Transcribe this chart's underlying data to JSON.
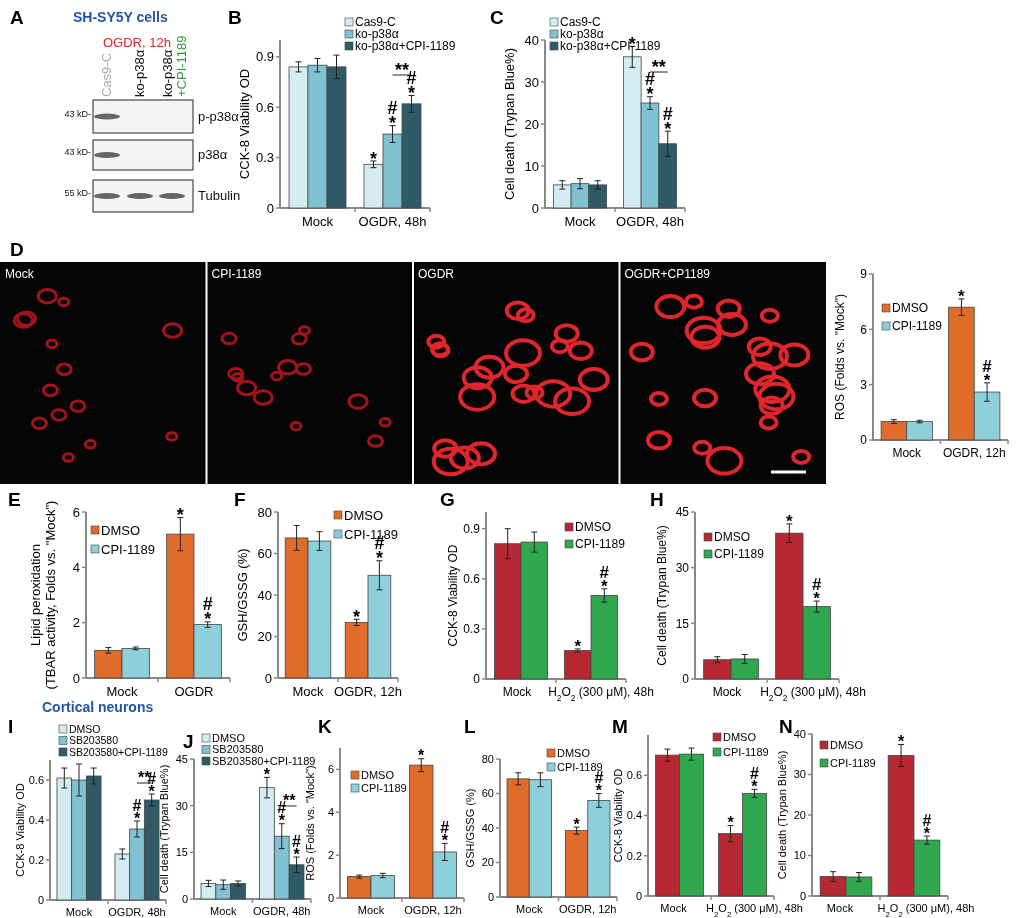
{
  "chart_data": [
    {
      "type": "other",
      "title": "A",
      "subtitle": "SH-SY5Y cells",
      "annotations": [
        "OGDR, 12h",
        "Cas9-C",
        "ko-p38α",
        "ko-p38α",
        "+CPI-1189",
        "43 kD-",
        "43 kD-",
        "55 kD-",
        "p-p38α",
        "p38α",
        "Tubulin"
      ]
    },
    {
      "type": "bar",
      "title": "B",
      "ylabel": "CCK-8 Viability OD",
      "categories": [
        "Mock",
        "OGDR, 48h"
      ],
      "ylim": [
        0,
        1
      ],
      "yticks": [
        0,
        0.3,
        0.6,
        0.9
      ],
      "legend": "top right",
      "series": [
        {
          "name": "Cas9-C",
          "color": "#d3ebf1",
          "values": [
            0.84,
            0.26
          ],
          "errors": [
            0.03,
            0.02
          ]
        },
        {
          "name": "ko-p38α",
          "color": "#80c2d2",
          "values": [
            0.85,
            0.44
          ],
          "errors": [
            0.04,
            0.05
          ]
        },
        {
          "name": "ko-p38α+CPI-1189",
          "color": "#2f5b67",
          "values": [
            0.84,
            0.62
          ],
          "errors": [
            0.07,
            0.05
          ]
        }
      ],
      "annotations": [
        "*",
        "*",
        "#",
        "*",
        "#",
        "**"
      ]
    },
    {
      "type": "bar",
      "title": "C",
      "ylabel": "Cell death (Trypan Blue%)",
      "categories": [
        "Mock",
        "OGDR, 48h"
      ],
      "ylim": [
        0,
        40
      ],
      "yticks": [
        0,
        10,
        20,
        30,
        40
      ],
      "legend": "top left",
      "series": [
        {
          "name": "Cas9-C",
          "color": "#d3ebf1",
          "values": [
            5.5,
            36
          ],
          "errors": [
            1,
            2.5
          ]
        },
        {
          "name": "ko-p38α",
          "color": "#80c2d2",
          "values": [
            5.8,
            25
          ],
          "errors": [
            1.2,
            1.5
          ]
        },
        {
          "name": "ko-p38α+CPI-1189",
          "color": "#2f5b67",
          "values": [
            5.5,
            15.3
          ],
          "errors": [
            1,
            3
          ]
        }
      ],
      "annotations": [
        "*",
        "*",
        "#",
        "*",
        "#",
        "**"
      ]
    },
    {
      "type": "other",
      "title": "D",
      "annotations": [
        "Mock",
        "CPI-1189",
        "OGDR",
        "OGDR+CP1189"
      ]
    },
    {
      "type": "bar",
      "ylabel": "ROS (Folds vs. \"Mock\")",
      "categories": [
        "Mock",
        "OGDR, 12h"
      ],
      "ylim": [
        0,
        9
      ],
      "yticks": [
        0,
        3,
        6,
        9
      ],
      "legend": "top left",
      "series": [
        {
          "name": "DMSO",
          "color": "#e06c2c",
          "values": [
            1.0,
            7.2
          ],
          "errors": [
            0.1,
            0.45
          ]
        },
        {
          "name": "CPI-1189",
          "color": "#8ecfdc",
          "values": [
            1.0,
            2.6
          ],
          "errors": [
            0.07,
            0.5
          ]
        }
      ],
      "annotations": [
        "*",
        "*",
        "#"
      ]
    },
    {
      "type": "bar",
      "title": "E",
      "ylabel": "Lipid peroxidation\n(TBAR activity, Folds vs. \"Mock\")",
      "categories": [
        "Mock",
        "OGDR"
      ],
      "ylim": [
        0,
        6
      ],
      "yticks": [
        0,
        2,
        4,
        6
      ],
      "legend": "top left",
      "series": [
        {
          "name": "DMSO",
          "color": "#e06c2c",
          "values": [
            1.0,
            5.2
          ],
          "errors": [
            0.1,
            0.6
          ]
        },
        {
          "name": "CPI-1189",
          "color": "#8ecfdc",
          "values": [
            1.07,
            1.93
          ],
          "errors": [
            0.05,
            0.1
          ]
        }
      ],
      "annotations": [
        "*",
        "*",
        "#"
      ]
    },
    {
      "type": "bar",
      "title": "F",
      "ylabel": "GSH/GSSG (%)",
      "categories": [
        "Mock",
        "OGDR, 12h"
      ],
      "ylim": [
        0,
        80
      ],
      "yticks": [
        0,
        20,
        40,
        60,
        80
      ],
      "legend": "top right",
      "series": [
        {
          "name": "DMSO",
          "color": "#e06c2c",
          "values": [
            67.5,
            26.8
          ],
          "errors": [
            6,
            1.5
          ]
        },
        {
          "name": "CPI-1189",
          "color": "#8ecfdc",
          "values": [
            66,
            49.5
          ],
          "errors": [
            4.5,
            7
          ]
        }
      ],
      "annotations": [
        "*",
        "*",
        "#"
      ]
    },
    {
      "type": "bar",
      "title": "G",
      "ylabel": "CCK-8 Viability OD",
      "categories": [
        "Mock",
        "H$_{2}$O$_{2}$ (300 μM), 48h"
      ],
      "ylim": [
        0,
        1
      ],
      "yticks": [
        0,
        0.3,
        0.6,
        0.9
      ],
      "legend": "top right",
      "series": [
        {
          "name": "DMSO",
          "color": "#b72833",
          "values": [
            0.81,
            0.17
          ],
          "errors": [
            0.09,
            0.01
          ]
        },
        {
          "name": "CPI-1189",
          "color": "#2fa84f",
          "values": [
            0.82,
            0.5
          ],
          "errors": [
            0.06,
            0.04
          ]
        }
      ],
      "annotations": [
        "*",
        "*",
        "#"
      ]
    },
    {
      "type": "bar",
      "title": "H",
      "ylabel": "Cell death (Trypan Blue%)",
      "categories": [
        "Mock",
        "H$_{2}$O$_{2}$ (300 μM), 48h"
      ],
      "ylim": [
        0,
        45
      ],
      "yticks": [
        0,
        15,
        30,
        45
      ],
      "legend": "top left",
      "series": [
        {
          "name": "DMSO",
          "color": "#b72833",
          "values": [
            5.2,
            39.3
          ],
          "errors": [
            0.8,
            2.5
          ]
        },
        {
          "name": "CPI-1189",
          "color": "#2fa84f",
          "values": [
            5.4,
            19.5
          ],
          "errors": [
            1.2,
            1.5
          ]
        }
      ],
      "annotations": [
        "*",
        "*",
        "#"
      ]
    },
    {
      "type": "bar",
      "title": "I",
      "subtitle": "Cortical neurons",
      "ylabel": "CCK-8 Viability OD",
      "categories": [
        "Mock",
        "OGDR, 48h"
      ],
      "ylim": [
        0,
        0.7
      ],
      "yticks": [
        0,
        0.2,
        0.4,
        0.6
      ],
      "legend": "top right",
      "series": [
        {
          "name": "DMSO",
          "color": "#d3ebf1",
          "values": [
            0.61,
            0.23
          ],
          "errors": [
            0.05,
            0.025
          ]
        },
        {
          "name": "SB203580",
          "color": "#80c2d2",
          "values": [
            0.6,
            0.355
          ],
          "errors": [
            0.08,
            0.04
          ]
        },
        {
          "name": "SB203580+CPI-1189",
          "color": "#2f5b67",
          "values": [
            0.62,
            0.5
          ],
          "errors": [
            0.04,
            0.03
          ]
        }
      ],
      "annotations": [
        "*",
        "#",
        "*",
        "#",
        "**"
      ]
    },
    {
      "type": "bar",
      "title": "J",
      "ylabel": "Cell death (Trypan Blue%)",
      "categories": [
        "Mock",
        "OGDR, 48h"
      ],
      "ylim": [
        0,
        45
      ],
      "yticks": [
        0,
        15,
        30,
        45
      ],
      "legend": "top right",
      "series": [
        {
          "name": "DMSO",
          "color": "#d3ebf1",
          "values": [
            5,
            35.8
          ],
          "errors": [
            1,
            3.3
          ]
        },
        {
          "name": "SB203580",
          "color": "#80c2d2",
          "values": [
            4.6,
            20.2
          ],
          "errors": [
            1.5,
            4
          ]
        },
        {
          "name": "SB203580+CPI-1189",
          "color": "#2f5b67",
          "values": [
            5,
            11
          ],
          "errors": [
            0.8,
            2.5
          ]
        }
      ],
      "annotations": [
        "*",
        "*",
        "#",
        "*",
        "#",
        "**"
      ]
    },
    {
      "type": "bar",
      "title": "K",
      "ylabel": "ROS (Folds vs. \"Mock\")",
      "categories": [
        "Mock",
        "OGDR, 12h"
      ],
      "ylim": [
        0,
        7
      ],
      "yticks": [
        0,
        2,
        4,
        6
      ],
      "legend": "top left",
      "series": [
        {
          "name": "DMSO",
          "color": "#e06c2c",
          "values": [
            1.0,
            6.2
          ],
          "errors": [
            0.07,
            0.3
          ]
        },
        {
          "name": "CPI-1189",
          "color": "#8ecfdc",
          "values": [
            1.05,
            2.15
          ],
          "errors": [
            0.1,
            0.4
          ]
        }
      ],
      "annotations": [
        "*",
        "*",
        "#"
      ]
    },
    {
      "type": "bar",
      "title": "L",
      "ylabel": "GSH/GSSG (%)",
      "categories": [
        "Mock",
        "OGDR, 12h"
      ],
      "ylim": [
        0,
        80
      ],
      "yticks": [
        0,
        20,
        40,
        60,
        80
      ],
      "legend": "top right",
      "series": [
        {
          "name": "DMSO",
          "color": "#e06c2c",
          "values": [
            68.5,
            38.5
          ],
          "errors": [
            3.5,
            2
          ]
        },
        {
          "name": "CPI-1189",
          "color": "#8ecfdc",
          "values": [
            68,
            56
          ],
          "errors": [
            4,
            4
          ]
        }
      ],
      "annotations": [
        "*",
        "*",
        "#"
      ]
    },
    {
      "type": "bar",
      "title": "M",
      "ylabel": "CCK-8 Viability OD",
      "categories": [
        "Mock",
        "H$_{2}$O$_{2}$ (300 μM), 48h"
      ],
      "ylim": [
        0,
        0.8
      ],
      "yticks": [
        0,
        0.2,
        0.4,
        0.6
      ],
      "legend": "top right",
      "series": [
        {
          "name": "DMSO",
          "color": "#b72833",
          "values": [
            0.7,
            0.31
          ],
          "errors": [
            0.03,
            0.04
          ]
        },
        {
          "name": "CPI-1189",
          "color": "#2fa84f",
          "values": [
            0.705,
            0.51
          ],
          "errors": [
            0.03,
            0.02
          ]
        }
      ],
      "annotations": [
        "*",
        "*",
        "#"
      ]
    },
    {
      "type": "bar",
      "title": "N",
      "ylabel": "Cell death (Trypan Blue%)",
      "categories": [
        "Mock",
        "H$_{2}$O$_{2}$ (300 μM), 48h"
      ],
      "ylim": [
        0,
        40
      ],
      "yticks": [
        0,
        10,
        20,
        30,
        40
      ],
      "legend": "top left",
      "series": [
        {
          "name": "DMSO",
          "color": "#b72833",
          "values": [
            4.8,
            34.7
          ],
          "errors": [
            1.2,
            2.7
          ]
        },
        {
          "name": "CPI-1189",
          "color": "#2fa84f",
          "values": [
            4.7,
            13.8
          ],
          "errors": [
            1.1,
            1
          ]
        }
      ],
      "annotations": [
        "*",
        "*",
        "#"
      ]
    }
  ]
}
